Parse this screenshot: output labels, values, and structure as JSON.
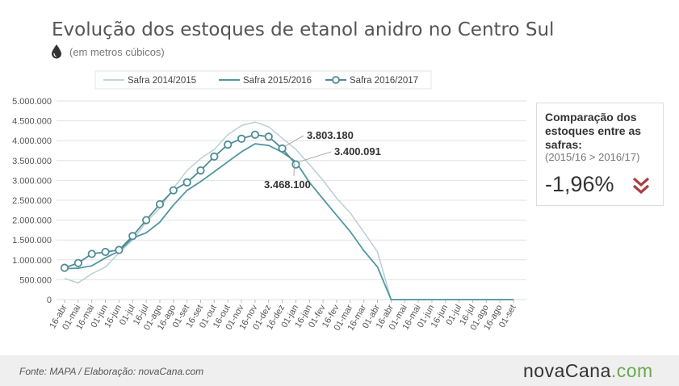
{
  "title": "Evolução dos estoques de etanol anidro no Centro Sul",
  "subtitle": "(em metros cúbicos)",
  "icon": "water-drop-icon",
  "colors": {
    "series_2014": "#b9cfd6",
    "series_2015": "#4f97a3",
    "series_2016": "#4f8c95",
    "grid": "#e2e2e2",
    "accent_down": "#a84040"
  },
  "chart_data": {
    "type": "line",
    "categories": [
      "16-abr",
      "01-mai",
      "16-mai",
      "01-jun",
      "16-jun",
      "01-jul",
      "16-jul",
      "01-ago",
      "16-ago",
      "01-set",
      "16-set",
      "01-out",
      "16-out",
      "01-nov",
      "16-nov",
      "01-dez",
      "16-dez",
      "01-jan",
      "16-jan",
      "01-fev",
      "16-fev",
      "01-mar",
      "16-mar",
      "01-abr",
      "16-abr",
      "01-mai",
      "16-mai",
      "01-jun",
      "16-jun",
      "01-jul",
      "16-jul",
      "01-ago",
      "16-ago",
      "01-set"
    ],
    "ylim": [
      0,
      5000000
    ],
    "yticks": [
      0,
      500000,
      1000000,
      1500000,
      2000000,
      2500000,
      3000000,
      3500000,
      4000000,
      4500000,
      5000000
    ],
    "ytick_labels": [
      "0",
      "500.000",
      "1.000.000",
      "1.500.000",
      "2.000.000",
      "2.500.000",
      "3.000.000",
      "3.500.000",
      "4.000.000",
      "4.500.000",
      "5.000.000"
    ],
    "grid": true,
    "legend_position": "top",
    "series": [
      {
        "name": "Safra 2014/2015",
        "values": [
          530000,
          420000,
          650000,
          820000,
          1180000,
          1500000,
          1950000,
          2300000,
          2800000,
          3250000,
          3550000,
          3780000,
          4150000,
          4380000,
          4470000,
          4350000,
          4060000,
          3780000,
          3400000,
          3000000,
          2550000,
          2180000,
          1700000,
          1200000,
          0,
          0,
          0,
          0,
          0,
          0,
          0,
          0,
          0,
          0
        ]
      },
      {
        "name": "Safra 2015/2016",
        "values": [
          780000,
          790000,
          850000,
          1050000,
          1220000,
          1550000,
          1680000,
          1950000,
          2380000,
          2750000,
          2970000,
          3220000,
          3470000,
          3720000,
          3920000,
          3880000,
          3710000,
          3468100,
          2950000,
          2530000,
          2120000,
          1710000,
          1230000,
          820000,
          0,
          0,
          0,
          0,
          0,
          0,
          0,
          0,
          0,
          0
        ]
      },
      {
        "name": "Safra 2016/2017",
        "values": [
          800000,
          920000,
          1150000,
          1200000,
          1250000,
          1600000,
          2000000,
          2400000,
          2750000,
          2950000,
          3250000,
          3600000,
          3900000,
          4050000,
          4150000,
          4100000,
          3803180,
          3400091,
          null,
          null,
          null,
          null,
          null,
          null,
          null,
          null,
          null,
          null,
          null,
          null,
          null,
          null,
          null,
          null
        ]
      }
    ],
    "annotations": [
      {
        "text": "3.803.180",
        "category": "16-dez",
        "value": 3803180
      },
      {
        "text": "3.400.091",
        "category": "01-jan",
        "value": 3400091
      },
      {
        "text": "3.468.100",
        "category": "01-jan",
        "value": 3468100
      }
    ]
  },
  "comparison": {
    "title": "Comparação dos estoques entre as safras:",
    "detail": "(2015/16 > 2016/17)",
    "value": "-1,96%",
    "icon": "double-chevron-down-icon"
  },
  "footer": {
    "source": "Fonte: MAPA  / Elaboração: novaCana.com"
  },
  "logo": {
    "main": "novaCana",
    "dot": ".",
    "tld": "com"
  }
}
